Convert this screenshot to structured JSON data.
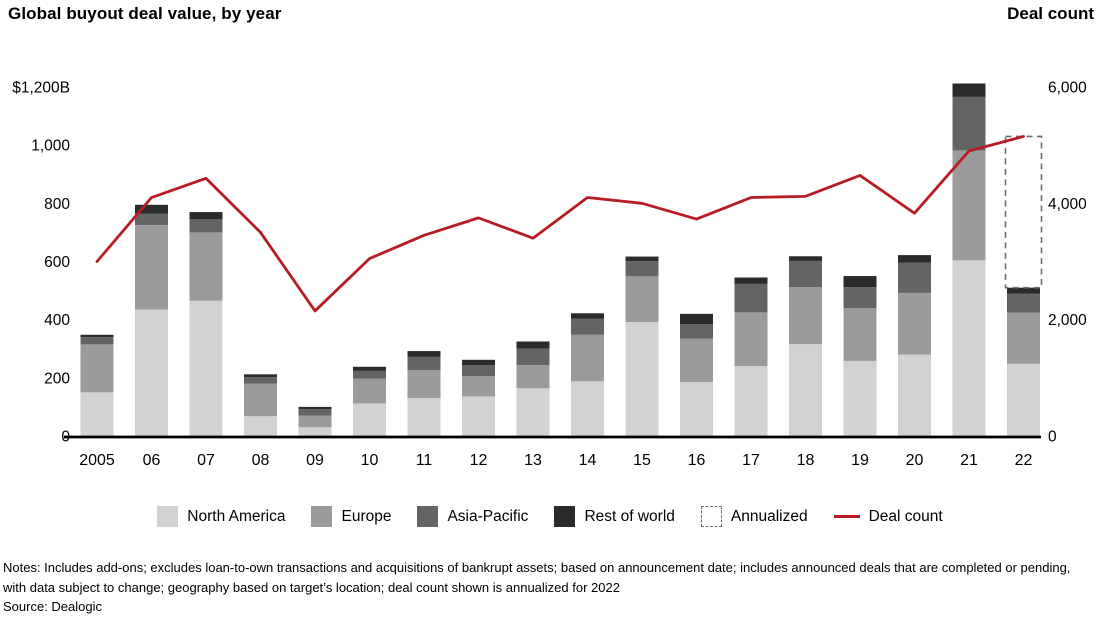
{
  "header": {
    "title": "Global buyout deal value, by year",
    "right_axis_title": "Deal count"
  },
  "colors": {
    "north_america": "#d2d2d2",
    "europe": "#9b9b9b",
    "asia_pacific": "#646464",
    "rest_of_world": "#2b2b2b",
    "deal_count_line": "#b71c25",
    "annualized_dash": "#6e6e6e",
    "axis": "#000000"
  },
  "chart_data": {
    "type": "bar",
    "subtype": "stacked-bars-with-line",
    "title": "Global buyout deal value, by year",
    "categories": [
      "2005",
      "06",
      "07",
      "08",
      "09",
      "10",
      "11",
      "12",
      "13",
      "14",
      "15",
      "16",
      "17",
      "18",
      "19",
      "20",
      "21",
      "22"
    ],
    "left_axis": {
      "unit": "$B",
      "range": [
        0,
        1200
      ],
      "ticks": [
        {
          "label": "$1,200B",
          "value": 1200
        },
        {
          "label": "1,000",
          "value": 1000
        },
        {
          "label": "800",
          "value": 800
        },
        {
          "label": "600",
          "value": 600
        },
        {
          "label": "400",
          "value": 400
        },
        {
          "label": "200",
          "value": 200
        },
        {
          "label": "0",
          "value": 0
        }
      ]
    },
    "right_axis": {
      "title": "Deal count",
      "range": [
        0,
        6000
      ],
      "ticks": [
        {
          "label": "6,000",
          "value": 6000
        },
        {
          "label": "4,000",
          "value": 4000
        },
        {
          "label": "2,000",
          "value": 2000
        },
        {
          "label": "0",
          "value": 0
        }
      ]
    },
    "series": [
      {
        "name": "North America",
        "color": "#d2d2d2",
        "values": [
          150,
          435,
          465,
          68,
          30,
          112,
          130,
          136,
          164,
          188,
          392,
          185,
          240,
          316,
          258,
          280,
          604,
          248
        ]
      },
      {
        "name": "Europe",
        "color": "#9b9b9b",
        "values": [
          165,
          290,
          235,
          112,
          40,
          85,
          97,
          70,
          80,
          160,
          157,
          150,
          185,
          196,
          182,
          212,
          378,
          176
        ]
      },
      {
        "name": "Asia-Pacific",
        "color": "#646464",
        "values": [
          25,
          40,
          45,
          22,
          22,
          27,
          45,
          38,
          57,
          56,
          52,
          50,
          98,
          90,
          72,
          104,
          184,
          66
        ]
      },
      {
        "name": "Rest of world",
        "color": "#2b2b2b",
        "values": [
          8,
          30,
          25,
          10,
          8,
          14,
          20,
          18,
          24,
          18,
          16,
          35,
          22,
          16,
          38,
          26,
          46,
          20
        ]
      }
    ],
    "annualized": {
      "label": "Annualized",
      "category": "22",
      "annualized_total": 1030,
      "actual_total": 510
    },
    "line_series": {
      "name": "Deal count",
      "color": "#b71c25",
      "values": [
        3000,
        4100,
        4430,
        3500,
        2150,
        3050,
        3450,
        3750,
        3400,
        4100,
        4000,
        3730,
        4100,
        4120,
        4480,
        3830,
        4900,
        5150
      ]
    },
    "legend_position": "bottom",
    "grid": false
  },
  "legend": {
    "items": [
      {
        "label": "North America",
        "type": "swatch"
      },
      {
        "label": "Europe",
        "type": "swatch"
      },
      {
        "label": "Asia-Pacific",
        "type": "swatch"
      },
      {
        "label": "Rest of world",
        "type": "swatch"
      },
      {
        "label": "Annualized",
        "type": "dashed-box"
      },
      {
        "label": "Deal count",
        "type": "line"
      }
    ]
  },
  "footer": {
    "notes": "Notes: Includes add-ons; excludes loan-to-own transactions and acquisitions of bankrupt assets; based on announcement date; includes announced deals that are completed or pending, with data subject to change; geography based on target’s location; deal count shown is annualized for 2022",
    "source": "Source: Dealogic"
  }
}
